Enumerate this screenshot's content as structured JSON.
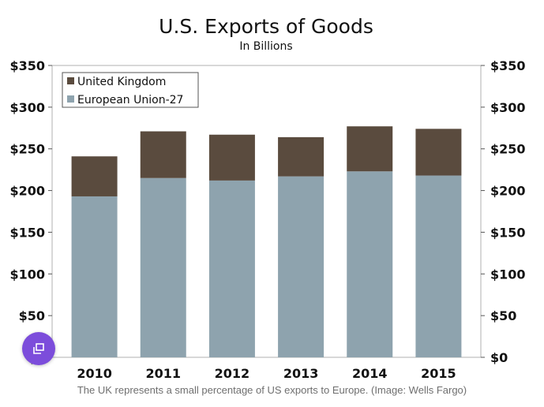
{
  "chart_data": {
    "type": "bar",
    "stacked": true,
    "title": "U.S. Exports of Goods",
    "subtitle": "In Billions",
    "categories": [
      "2010",
      "2011",
      "2012",
      "2013",
      "2014",
      "2015"
    ],
    "series": [
      {
        "name": "European Union-27",
        "values": [
          193,
          215,
          212,
          217,
          223,
          218
        ]
      },
      {
        "name": "United Kingdom",
        "values": [
          48,
          56,
          55,
          47,
          54,
          56
        ]
      }
    ],
    "ylim": [
      0,
      350
    ],
    "yticks": [
      0,
      50,
      100,
      150,
      200,
      250,
      300,
      350
    ],
    "ytick_labels": [
      "$0",
      "$50",
      "$100",
      "$150",
      "$200",
      "$250",
      "$300",
      "$350"
    ],
    "xlabel": "",
    "ylabel": "",
    "legend_position": "top-left",
    "colors": {
      "United Kingdom": "#5a4b3e",
      "European Union-27": "#8ea3ae"
    }
  },
  "caption": "The UK represents a small percentage of US exports to Europe. (Image: Wells Fargo)",
  "fab": {
    "icon": "copy-icon",
    "color": "#7c4ddb"
  }
}
